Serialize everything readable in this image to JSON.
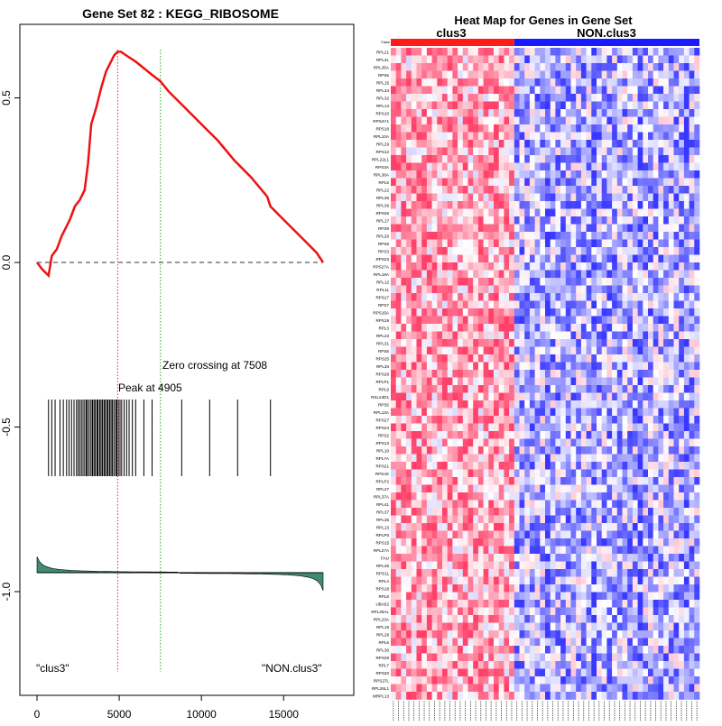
{
  "left_panel": {
    "title": "Gene Set  82 : KEGG_RIBOSOME",
    "peak_label": "Peak at 4905",
    "zero_label": "Zero crossing at 7508",
    "left_class": "\"clus3\"",
    "right_class": "\"NON.clus3\"",
    "y_ticks": [
      "0.5",
      "0.0",
      "-0.5",
      "-1.0"
    ],
    "x_ticks": [
      "0",
      "5000",
      "10000",
      "15000"
    ]
  },
  "right_panel": {
    "title": "Heat Map for Genes in Gene Set",
    "class_row_label": "Class",
    "class_a": "clus3",
    "class_b": "NON.clus3"
  },
  "colors": {
    "es_line": "#ee1111",
    "peak_line": "#ee2222",
    "zero_line": "#22aa22",
    "metric_fill": "#3f8c73",
    "class_a": "#ff1a1a",
    "class_b": "#1a1aff",
    "hit_tick": "#000000"
  },
  "chart_data": [
    {
      "type": "line",
      "title": "Gene Set  82 : KEGG_RIBOSOME",
      "series": [
        {
          "name": "Running enrichment score",
          "x": [
            0,
            300,
            700,
            900,
            1200,
            1500,
            1800,
            2000,
            2300,
            2600,
            2900,
            3100,
            3300,
            3600,
            3900,
            4200,
            4500,
            4700,
            4905,
            5100,
            5400,
            6000,
            7000,
            7508,
            8000,
            9000,
            10000,
            11000,
            12000,
            13000,
            14000,
            14200,
            15000,
            16000,
            17000,
            17400
          ],
          "values": [
            0.0,
            -0.02,
            -0.04,
            0.02,
            0.04,
            0.08,
            0.11,
            0.13,
            0.17,
            0.19,
            0.22,
            0.3,
            0.42,
            0.47,
            0.53,
            0.58,
            0.61,
            0.63,
            0.64,
            0.64,
            0.63,
            0.61,
            0.57,
            0.55,
            0.52,
            0.47,
            0.42,
            0.37,
            0.31,
            0.26,
            0.2,
            0.17,
            0.13,
            0.08,
            0.03,
            0.0
          ]
        }
      ],
      "hit_positions": [
        700,
        900,
        1100,
        1400,
        1600,
        1800,
        1950,
        2100,
        2250,
        2400,
        2500,
        2600,
        2700,
        2800,
        2900,
        3000,
        3050,
        3150,
        3250,
        3350,
        3400,
        3500,
        3550,
        3650,
        3700,
        3800,
        3850,
        3950,
        4000,
        4100,
        4150,
        4250,
        4300,
        4400,
        4450,
        4550,
        4600,
        4700,
        4800,
        4850,
        4950,
        5050,
        5150,
        5300,
        5450,
        5600,
        5800,
        6000,
        6500,
        7000,
        8800,
        10500,
        12200,
        14200
      ],
      "peak_x": 4905,
      "zero_crossing_x": 7508,
      "xlim": [
        0,
        17400
      ],
      "ylim": [
        -1.25,
        0.7
      ],
      "y_ticks": [
        0.5,
        0.0,
        -0.5,
        -1.0
      ],
      "x_ticks": [
        0,
        5000,
        10000,
        15000
      ],
      "xlabel": "",
      "ylabel": ""
    },
    {
      "type": "heatmap",
      "title": "Heat Map for Genes in Gene Set",
      "rows": [
        "RPL21",
        "RPL3L",
        "RPL35A",
        "RPS6",
        "RPL15",
        "RPL34",
        "RPL32",
        "RPL14",
        "RPS10",
        "RPS4Y1",
        "RPS16",
        "RPL10A",
        "RPL29",
        "RPS12",
        "RPL22L1",
        "RPS3A",
        "RPL36A",
        "RPL5",
        "RPL22",
        "RPL36",
        "RPL39",
        "RPS26",
        "RPL17",
        "RPS9",
        "RPL26",
        "RPS8",
        "RPS3",
        "RPS23",
        "RPS27A",
        "RPL18A",
        "RPL12",
        "RPL11",
        "RPS17",
        "RPS7",
        "RPS15A",
        "RPS19",
        "RPL3",
        "RPL23",
        "RPL31",
        "RPS6",
        "RPS25",
        "RPL30",
        "RPS28",
        "RPLP1",
        "RPL9",
        "RSL24D1",
        "RPS5",
        "RPL13A",
        "RPS27",
        "RPS24",
        "RPS2",
        "RPS13",
        "RPL10",
        "RPL7A",
        "RPS21",
        "RPS4X",
        "RPLP2",
        "RPL27",
        "RPL37A",
        "RPL41",
        "RPL37",
        "RPL35",
        "RPL13",
        "RPLP0",
        "RPS15",
        "RPL27A",
        "FAU",
        "RPL36",
        "RPS11",
        "RPL4",
        "RPS18",
        "RPL8",
        "UBA52",
        "RPL36AL",
        "RPL23A",
        "RPL19",
        "RPL28",
        "RPL6",
        "RPL30",
        "RPS29",
        "RPL7",
        "RPS20",
        "RPS27L",
        "RPL26L1",
        "MRPL13"
      ],
      "n_rows": 85,
      "n_cols": 60,
      "class_a_cols": 24,
      "class_b_cols": 36,
      "color_scale": [
        "blue",
        "white",
        "red"
      ]
    }
  ]
}
